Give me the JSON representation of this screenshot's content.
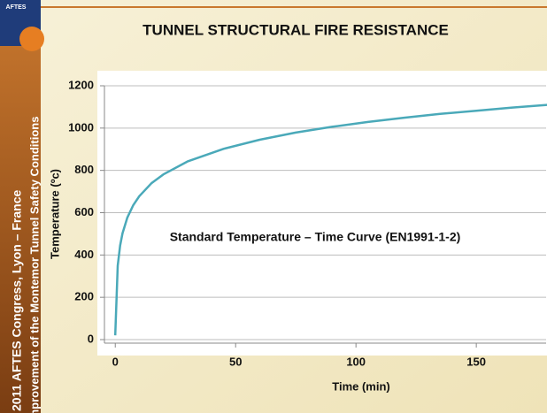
{
  "slide": {
    "logo": "AFTES",
    "side_lines": [
      "2011 AFTES Congress, Lyon – France",
      "Improvement of the Montemor Tunnel Safety Conditions"
    ]
  },
  "chart_data": {
    "type": "line",
    "title": "TUNNEL STRUCTURAL FIRE RESISTANCE",
    "annotation": "Standard Temperature – Time Curve (EN1991-1-2)",
    "x_label": "Time (min)",
    "y_label": "Temperature (ºc)",
    "x": [
      0,
      1,
      2,
      3,
      5,
      7.5,
      10,
      15,
      20,
      30,
      45,
      60,
      75,
      90,
      105,
      120,
      135,
      150,
      165,
      180
    ],
    "series": [
      {
        "name": "Standard Temperature – Time Curve",
        "color": "#4aa9b9",
        "values": [
          20,
          349,
          444,
          502,
          576,
          636,
          678,
          739,
          781,
          842,
          902,
          945,
          979,
          1006,
          1029,
          1049,
          1067,
          1082,
          1097,
          1110
        ]
      }
    ],
    "xlim": [
      -4.5,
      179
    ],
    "xticks": [
      0,
      50,
      100,
      150
    ],
    "ylim": [
      0,
      1200
    ],
    "yticks": [
      0,
      200,
      400,
      600,
      800,
      1000,
      1200
    ],
    "grid": true
  }
}
